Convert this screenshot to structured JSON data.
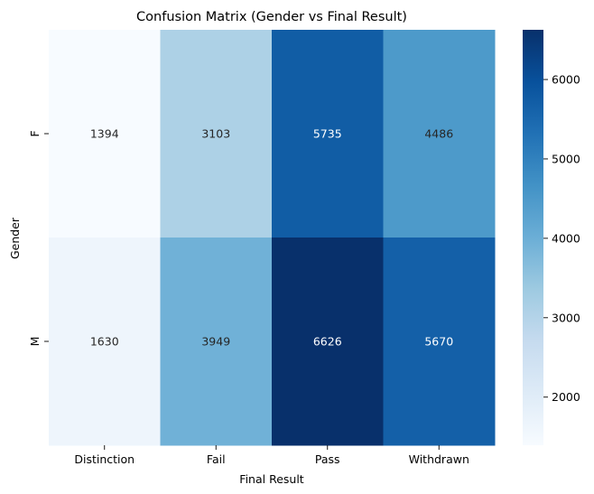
{
  "chart_data": {
    "type": "heatmap",
    "title": "Confusion Matrix (Gender vs Final Result)",
    "xlabel": "Final Result",
    "ylabel": "Gender",
    "x_categories": [
      "Distinction",
      "Fail",
      "Pass",
      "Withdrawn"
    ],
    "y_categories": [
      "F",
      "M"
    ],
    "values": [
      [
        1394,
        3103,
        5735,
        4486
      ],
      [
        1630,
        3949,
        6626,
        5670
      ]
    ],
    "colormap": "Blues",
    "color_range": [
      1394,
      6626
    ],
    "colorbar_ticks": [
      "2000",
      "3000",
      "4000",
      "5000",
      "6000"
    ],
    "colorbar_tick_values": [
      2000,
      3000,
      4000,
      5000,
      6000
    ]
  }
}
